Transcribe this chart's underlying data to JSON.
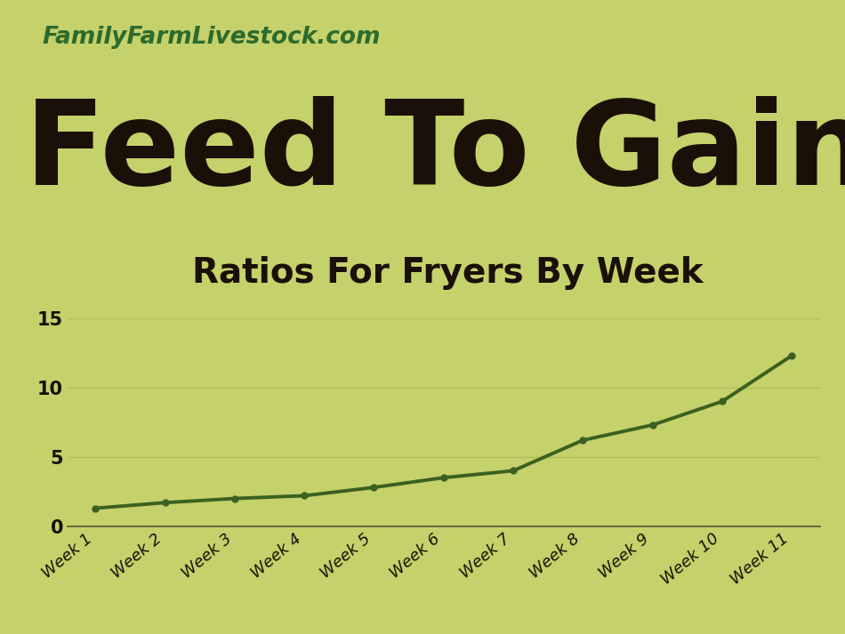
{
  "weeks": [
    "Week 1",
    "Week 2",
    "Week 3",
    "Week 4",
    "Week 5",
    "Week 6",
    "Week 7",
    "Week 8",
    "Week 9",
    "Week 10",
    "Week 11"
  ],
  "values": [
    1.3,
    1.7,
    2.0,
    2.2,
    2.8,
    3.5,
    4.0,
    6.2,
    7.3,
    9.0,
    12.3
  ],
  "line_color": "#3a6120",
  "marker_color": "#3a6120",
  "background_color": "#c5d16b",
  "title_main": "Feed To Gain",
  "title_sub": "Ratios For Fryers By Week",
  "watermark": "FamilyFarmLivestock.com",
  "watermark_color": "#2d6b2d",
  "title_color": "#1a1008",
  "subtitle_color": "#1a1008",
  "tick_label_color": "#1a1008",
  "ytick_labels": [
    0,
    5,
    10,
    15
  ],
  "ylim": [
    0,
    16
  ],
  "grid_color": "#afc05a",
  "line_width": 2.8,
  "marker_size": 5,
  "marker_style": "o"
}
